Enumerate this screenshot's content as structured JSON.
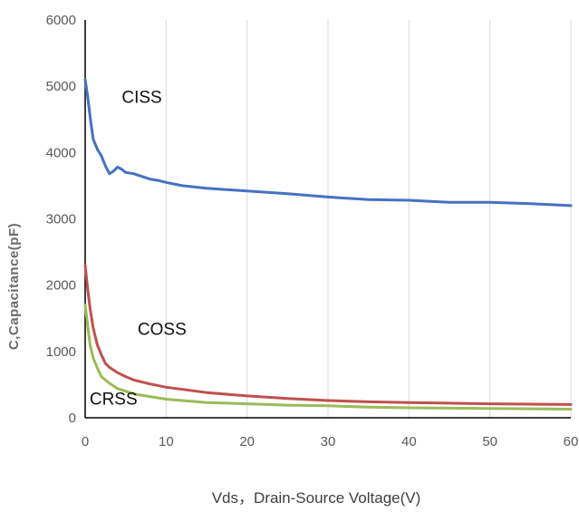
{
  "chart_data": {
    "type": "line",
    "title": "",
    "xlabel": "Vds，Drain-Source Voltage(V)",
    "ylabel": "C,Capacitance(pF)",
    "xlim": [
      0,
      60
    ],
    "ylim": [
      0,
      6000
    ],
    "xticks": [
      0,
      10,
      20,
      30,
      40,
      50,
      60
    ],
    "yticks": [
      0,
      1000,
      2000,
      3000,
      4000,
      5000,
      6000
    ],
    "grid": "vertical",
    "legend": "none",
    "series": [
      {
        "name": "CISS",
        "color": "#4472c4",
        "points": [
          [
            0,
            5100
          ],
          [
            0.3,
            4850
          ],
          [
            0.7,
            4450
          ],
          [
            1,
            4200
          ],
          [
            1.5,
            4050
          ],
          [
            2,
            3950
          ],
          [
            2.5,
            3800
          ],
          [
            3,
            3680
          ],
          [
            3.5,
            3720
          ],
          [
            4,
            3780
          ],
          [
            4.5,
            3750
          ],
          [
            5,
            3700
          ],
          [
            6,
            3680
          ],
          [
            7,
            3640
          ],
          [
            8,
            3600
          ],
          [
            9,
            3580
          ],
          [
            10,
            3550
          ],
          [
            12,
            3500
          ],
          [
            15,
            3460
          ],
          [
            20,
            3420
          ],
          [
            25,
            3380
          ],
          [
            30,
            3330
          ],
          [
            35,
            3290
          ],
          [
            40,
            3280
          ],
          [
            45,
            3250
          ],
          [
            50,
            3250
          ],
          [
            55,
            3230
          ],
          [
            60,
            3200
          ]
        ]
      },
      {
        "name": "COSS",
        "color": "#c0504d",
        "points": [
          [
            0,
            2300
          ],
          [
            0.3,
            1950
          ],
          [
            0.6,
            1650
          ],
          [
            1,
            1350
          ],
          [
            1.5,
            1100
          ],
          [
            2,
            950
          ],
          [
            2.5,
            820
          ],
          [
            3,
            760
          ],
          [
            4,
            680
          ],
          [
            5,
            620
          ],
          [
            6,
            570
          ],
          [
            8,
            510
          ],
          [
            10,
            460
          ],
          [
            15,
            380
          ],
          [
            20,
            330
          ],
          [
            25,
            290
          ],
          [
            30,
            260
          ],
          [
            35,
            240
          ],
          [
            40,
            230
          ],
          [
            45,
            220
          ],
          [
            50,
            210
          ],
          [
            55,
            205
          ],
          [
            60,
            200
          ]
        ]
      },
      {
        "name": "CRSS",
        "color": "#9bbb59",
        "points": [
          [
            0,
            1700
          ],
          [
            0.3,
            1400
          ],
          [
            0.6,
            1100
          ],
          [
            1,
            900
          ],
          [
            1.5,
            750
          ],
          [
            2,
            620
          ],
          [
            3,
            520
          ],
          [
            4,
            440
          ],
          [
            5,
            400
          ],
          [
            6,
            360
          ],
          [
            8,
            320
          ],
          [
            10,
            280
          ],
          [
            15,
            230
          ],
          [
            20,
            210
          ],
          [
            25,
            190
          ],
          [
            30,
            180
          ],
          [
            35,
            160
          ],
          [
            40,
            150
          ],
          [
            45,
            145
          ],
          [
            50,
            140
          ],
          [
            55,
            135
          ],
          [
            60,
            130
          ]
        ]
      }
    ],
    "annotations": [
      {
        "text": "CISS",
        "x": 7,
        "y": 4750
      },
      {
        "text": "COSS",
        "x": 9.5,
        "y": 1250
      },
      {
        "text": "CRSS",
        "x": 3.5,
        "y": 200
      }
    ]
  }
}
